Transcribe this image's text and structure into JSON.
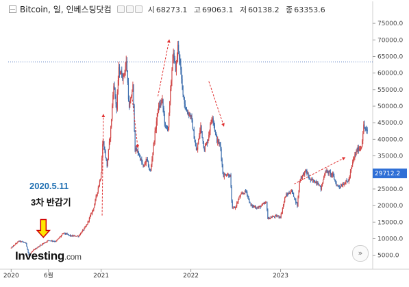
{
  "header": {
    "title": "Bitcoin, 일, 인베스팅닷컴",
    "open_label": "시",
    "open": "68273.1",
    "high_label": "고",
    "high": "69063.1",
    "low_label": "저",
    "low": "60138.2",
    "close_label": "종",
    "close": "63353.6"
  },
  "annotations": {
    "date": "2020.5.11",
    "halving": "3차 반감기"
  },
  "logo": {
    "brand": "Investing",
    "domain": ".com"
  },
  "nav": {
    "forward_icon": "double-chevron-right-icon",
    "forward_label": "»"
  },
  "colors": {
    "up": "#d14a4a",
    "down": "#3f6fae",
    "price_tag": "#2f6fd6",
    "reference_line": "#3c68b8",
    "annotation_arrow": "#e03030",
    "halving_arrow_fill": "#ffe600",
    "halving_arrow_stroke": "#d00000",
    "date_text": "#1f6fb2"
  },
  "chart_data": {
    "type": "line",
    "title": "Bitcoin, 일, 인베스팅닷컴",
    "series": [
      {
        "name": "Bitcoin",
        "x": [
          "2020-01-01",
          "2020-02-01",
          "2020-03-01",
          "2020-03-13",
          "2020-04-01",
          "2020-05-11",
          "2020-06-01",
          "2020-07-01",
          "2020-08-01",
          "2020-09-01",
          "2020-10-01",
          "2020-11-01",
          "2020-12-01",
          "2020-12-31",
          "2021-01-08",
          "2021-01-25",
          "2021-02-10",
          "2021-02-21",
          "2021-03-05",
          "2021-03-13",
          "2021-04-01",
          "2021-04-14",
          "2021-04-25",
          "2021-05-10",
          "2021-05-19",
          "2021-06-01",
          "2021-06-22",
          "2021-07-05",
          "2021-07-20",
          "2021-08-05",
          "2021-08-20",
          "2021-09-06",
          "2021-09-20",
          "2021-10-01",
          "2021-10-20",
          "2021-11-01",
          "2021-11-10",
          "2021-11-25",
          "2021-12-10",
          "2022-01-01",
          "2022-01-24",
          "2022-02-10",
          "2022-02-24",
          "2022-03-10",
          "2022-03-29",
          "2022-04-15",
          "2022-05-01",
          "2022-05-12",
          "2022-05-25",
          "2022-06-10",
          "2022-06-18",
          "2022-07-01",
          "2022-07-20",
          "2022-08-14",
          "2022-09-01",
          "2022-09-15",
          "2022-10-01",
          "2022-11-05",
          "2022-11-10",
          "2022-11-25",
          "2022-12-15",
          "2023-01-01",
          "2023-01-20",
          "2023-02-15",
          "2023-03-10",
          "2023-03-20",
          "2023-04-14",
          "2023-05-01",
          "2023-06-01",
          "2023-06-15",
          "2023-07-01",
          "2023-07-20",
          "2023-08-01",
          "2023-08-18",
          "2023-09-01",
          "2023-09-20",
          "2023-10-05",
          "2023-10-24",
          "2023-11-10",
          "2023-11-25",
          "2023-12-05",
          "2023-12-20"
        ],
        "y": [
          7200,
          9300,
          8700,
          4900,
          6600,
          8600,
          9500,
          9200,
          11700,
          10800,
          10800,
          13800,
          19200,
          29000,
          40000,
          32000,
          44000,
          57000,
          49000,
          61000,
          58800,
          63500,
          49000,
          56000,
          37000,
          36000,
          31500,
          34000,
          29800,
          40000,
          49000,
          52000,
          43000,
          43800,
          66000,
          61000,
          68800,
          57000,
          49000,
          47000,
          36000,
          44000,
          37000,
          39500,
          47500,
          40000,
          38000,
          29000,
          29500,
          29000,
          19000,
          19500,
          23000,
          24400,
          20000,
          19700,
          19300,
          21000,
          16000,
          16500,
          16800,
          16600,
          22800,
          24500,
          20000,
          28000,
          30500,
          27700,
          27000,
          25000,
          30500,
          29800,
          29200,
          26000,
          25800,
          27000,
          27500,
          34000,
          37000,
          37500,
          44000,
          42000
        ]
      }
    ],
    "x_tick_labels": [
      "2020",
      "6월",
      "2021",
      "2022",
      "2023"
    ],
    "y_tick_labels": [
      "5000.0",
      "10000.0",
      "15000.0",
      "20000.0",
      "25000.0",
      "30000.0",
      "35000.0",
      "40000.0",
      "45000.0",
      "50000.0",
      "55000.0",
      "60000.0",
      "65000.0",
      "70000.0",
      "75000.0"
    ],
    "xlim": [
      "2019-12-20",
      "2023-12-25"
    ],
    "ylim": [
      1000,
      77500
    ],
    "reference_line": {
      "value": 63353.6,
      "style": "dotted"
    },
    "last_price_label": "29712.2",
    "grid": false,
    "legend": "none"
  }
}
